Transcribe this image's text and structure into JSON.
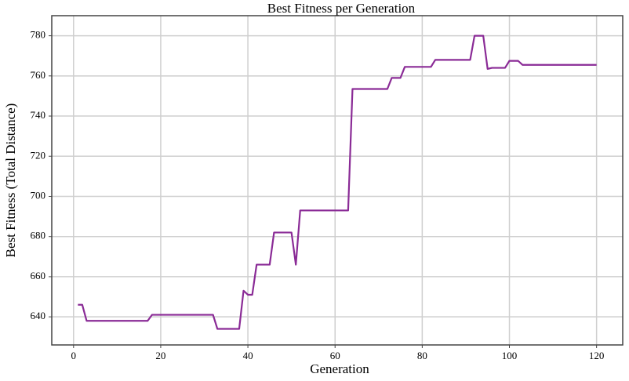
{
  "chart_data": {
    "type": "line",
    "title": "Best Fitness per Generation",
    "x_label": "Generation",
    "y_label": "Best Fitness (Total Distance)",
    "x": [
      1,
      2,
      3,
      4,
      5,
      6,
      7,
      8,
      9,
      10,
      11,
      12,
      13,
      14,
      15,
      16,
      17,
      18,
      19,
      20,
      21,
      22,
      23,
      24,
      25,
      26,
      27,
      28,
      29,
      30,
      31,
      32,
      33,
      34,
      35,
      36,
      37,
      38,
      39,
      40,
      41,
      42,
      43,
      44,
      45,
      46,
      47,
      48,
      49,
      50,
      51,
      52,
      53,
      54,
      55,
      56,
      57,
      58,
      59,
      60,
      61,
      62,
      63,
      64,
      65,
      66,
      67,
      68,
      69,
      70,
      71,
      72,
      73,
      74,
      75,
      76,
      77,
      78,
      79,
      80,
      81,
      82,
      83,
      84,
      85,
      86,
      87,
      88,
      89,
      90,
      91,
      92,
      93,
      94,
      95,
      96,
      97,
      98,
      99,
      100,
      101,
      102,
      103,
      104,
      105,
      106,
      107,
      108,
      109,
      110,
      111,
      112,
      113,
      114,
      115,
      116,
      117,
      118,
      119,
      120
    ],
    "series": [
      {
        "color": "#8a2b96",
        "values": [
          646,
          646,
          638,
          638,
          638,
          638,
          638,
          638,
          638,
          638,
          638,
          638,
          638,
          638,
          638,
          638,
          638,
          641,
          641,
          641,
          641,
          641,
          641,
          641,
          641,
          641,
          641,
          641,
          641,
          641,
          641,
          641,
          634,
          634,
          634,
          634,
          634,
          634,
          653,
          651,
          651,
          666,
          666,
          666,
          666,
          682,
          682,
          682,
          682,
          682,
          666,
          693,
          693,
          693,
          693,
          693,
          693,
          693,
          693,
          693,
          693,
          693,
          693,
          753.5,
          753.5,
          753.5,
          753.5,
          753.5,
          753.5,
          753.5,
          753.5,
          753.5,
          759,
          759,
          759,
          764.5,
          764.5,
          764.5,
          764.5,
          764.5,
          764.5,
          764.5,
          768,
          768,
          768,
          768,
          768,
          768,
          768,
          768,
          768,
          780,
          780,
          780,
          763.5,
          764,
          764,
          764,
          764,
          767.5,
          767.5,
          767.5,
          765.5,
          765.5,
          765.5,
          765.5,
          765.5,
          765.5,
          765.5,
          765.5,
          765.5,
          765.5,
          765.5,
          765.5,
          765.5,
          765.5,
          765.5,
          765.5,
          765.5,
          765.5
        ]
      }
    ],
    "xlim": [
      -5,
      126
    ],
    "ylim": [
      626,
      790
    ],
    "xticks": [
      0,
      20,
      40,
      60,
      80,
      100,
      120
    ],
    "yticks": [
      640,
      660,
      680,
      700,
      720,
      740,
      760,
      780
    ],
    "grid": true
  }
}
